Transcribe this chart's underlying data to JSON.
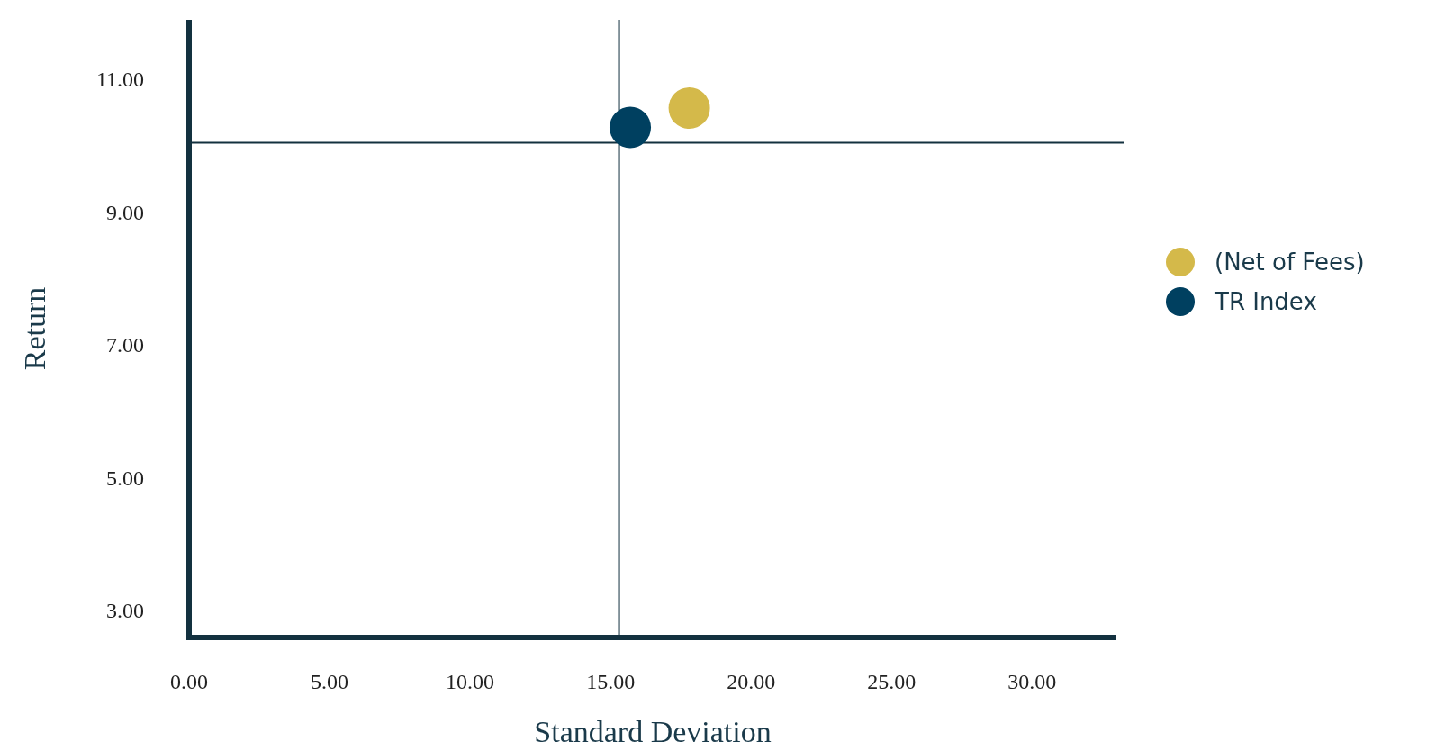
{
  "chart_data": {
    "type": "scatter",
    "xlabel": "Standard Deviation",
    "ylabel": "Return",
    "xlim": [
      0,
      33
    ],
    "xticks": [
      {
        "value": 0,
        "label": "0.00"
      },
      {
        "value": 5,
        "label": "5.00"
      },
      {
        "value": 10,
        "label": "10.00"
      },
      {
        "value": 15,
        "label": "15.00"
      },
      {
        "value": 20,
        "label": "20.00"
      },
      {
        "value": 25,
        "label": "25.00"
      },
      {
        "value": 30,
        "label": "30.00"
      }
    ],
    "ylim": [
      2.6,
      11.9
    ],
    "yticks": [
      {
        "value": 3,
        "label": "3.00"
      },
      {
        "value": 5,
        "label": "5.00"
      },
      {
        "value": 7,
        "label": "7.00"
      },
      {
        "value": 9,
        "label": "9.00"
      },
      {
        "value": 11,
        "label": "11.00"
      }
    ],
    "series": [
      {
        "name": "(Net of Fees)",
        "color": "#d4b94a",
        "x": [
          17.8
        ],
        "values": [
          10.57
        ]
      },
      {
        "name": "TR Index",
        "color": "#004060",
        "x": [
          15.7
        ],
        "values": [
          10.28
        ]
      }
    ],
    "ref_lines": [
      {
        "axis": "x",
        "value": 15.3,
        "color": "#13313f"
      },
      {
        "axis": "y",
        "value": 10.05,
        "color": "#13313f"
      }
    ],
    "marker": "circle",
    "legend": "right",
    "grid": false
  }
}
